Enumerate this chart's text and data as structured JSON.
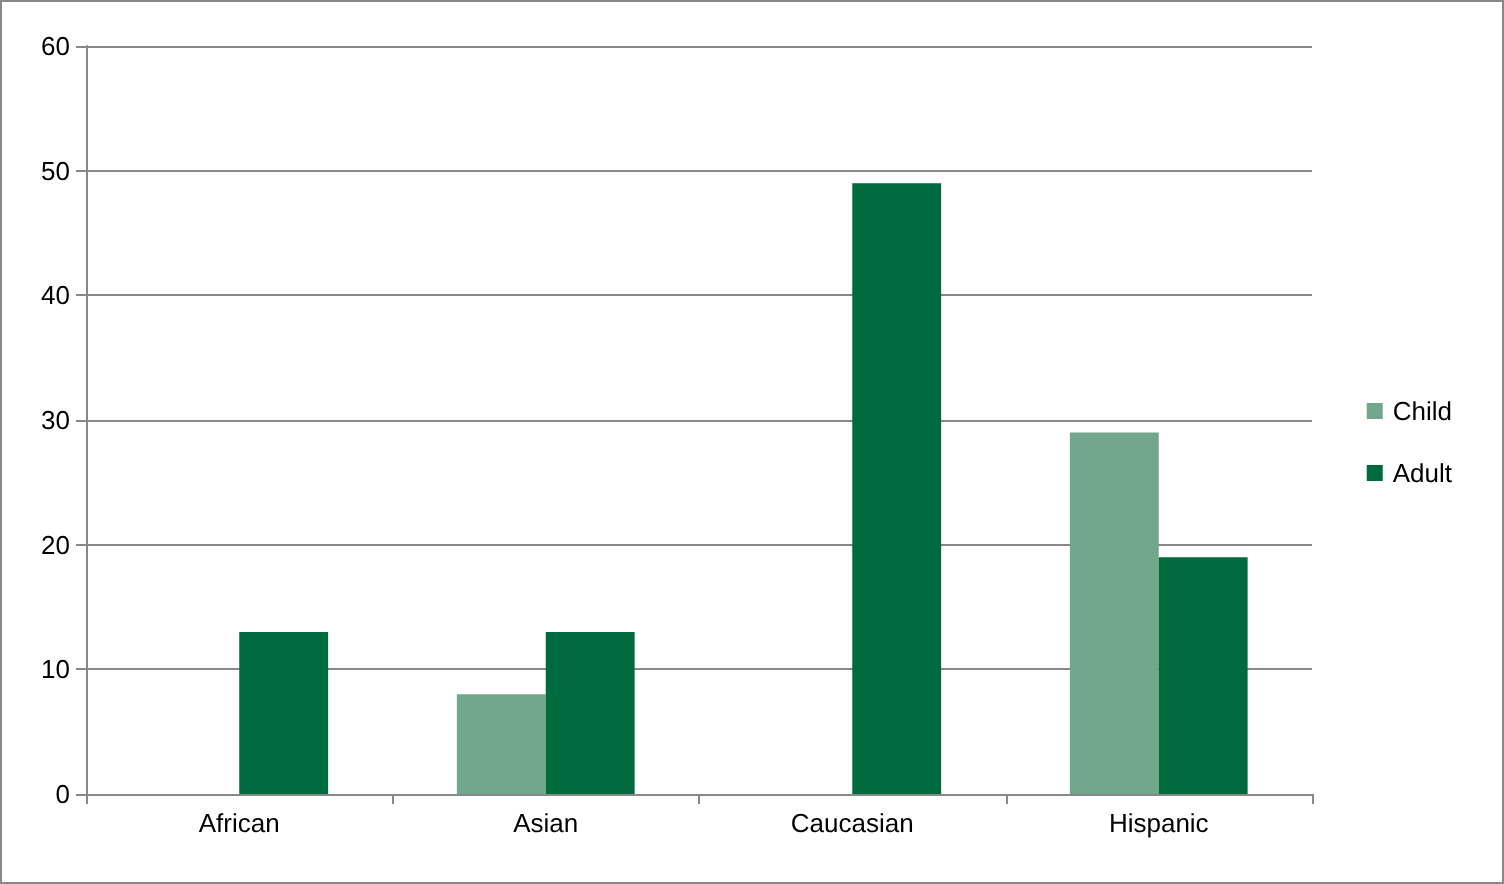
{
  "chart_data": {
    "type": "bar",
    "categories": [
      "African",
      "Asian",
      "Caucasian",
      "Hispanic"
    ],
    "series": [
      {
        "name": "Child",
        "color": "#71a78b",
        "values": [
          0,
          8,
          0,
          29
        ]
      },
      {
        "name": "Adult",
        "color": "#006a3f",
        "values": [
          13,
          13,
          49,
          19
        ]
      }
    ],
    "ylim": [
      0,
      60
    ],
    "yticks": [
      0,
      10,
      20,
      30,
      40,
      50,
      60
    ],
    "grid": "y",
    "legend": "right"
  }
}
